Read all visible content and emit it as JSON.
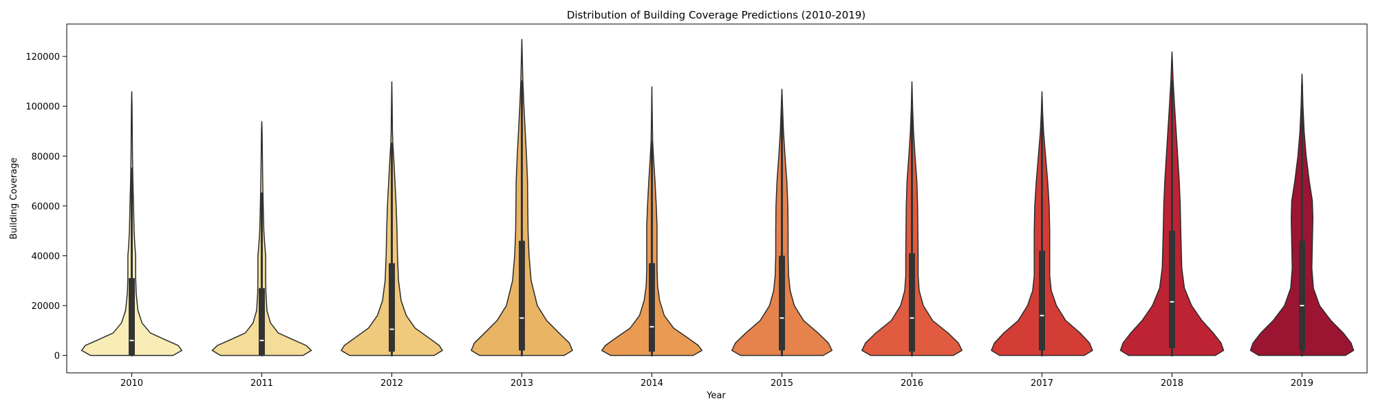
{
  "chart_data": {
    "type": "violin",
    "title": "Distribution of Building Coverage Predictions (2010-2019)",
    "xlabel": "Year",
    "ylabel": "Building Coverage",
    "ylim": [
      -7000,
      133000
    ],
    "yticks": [
      0,
      20000,
      40000,
      60000,
      80000,
      100000,
      120000
    ],
    "ytick_labels": [
      "0",
      "20000",
      "40000",
      "60000",
      "80000",
      "100000",
      "120000"
    ],
    "categories": [
      "2010",
      "2011",
      "2012",
      "2013",
      "2014",
      "2015",
      "2016",
      "2017",
      "2018",
      "2019"
    ],
    "grid": false,
    "legend": "none",
    "violins": [
      {
        "year": "2010",
        "color": "#F8EDB6",
        "min": 0,
        "q1": 0,
        "median": 6000,
        "q3": 31000,
        "whisker_high": 75000,
        "max": 106000,
        "profile": [
          [
            0,
            0.8
          ],
          [
            2000,
            0.97
          ],
          [
            4000,
            0.9
          ],
          [
            6000,
            0.68
          ],
          [
            9000,
            0.36
          ],
          [
            13000,
            0.2
          ],
          [
            18000,
            0.12
          ],
          [
            25000,
            0.085
          ],
          [
            32000,
            0.075
          ],
          [
            40000,
            0.075
          ],
          [
            44000,
            0.06
          ],
          [
            50000,
            0.045
          ],
          [
            60000,
            0.035
          ],
          [
            70000,
            0.022
          ],
          [
            80000,
            0.014
          ],
          [
            90000,
            0.01
          ],
          [
            100000,
            0.006
          ],
          [
            106000,
            0
          ]
        ]
      },
      {
        "year": "2011",
        "color": "#F4DD98",
        "min": 0,
        "q1": 0,
        "median": 6000,
        "q3": 27000,
        "whisker_high": 65000,
        "max": 94000,
        "profile": [
          [
            0,
            0.8
          ],
          [
            2000,
            0.96
          ],
          [
            4000,
            0.86
          ],
          [
            6000,
            0.64
          ],
          [
            9000,
            0.32
          ],
          [
            13000,
            0.17
          ],
          [
            18000,
            0.1
          ],
          [
            25000,
            0.08
          ],
          [
            32000,
            0.075
          ],
          [
            40000,
            0.075
          ],
          [
            45000,
            0.055
          ],
          [
            50000,
            0.04
          ],
          [
            60000,
            0.028
          ],
          [
            70000,
            0.018
          ],
          [
            80000,
            0.012
          ],
          [
            90000,
            0.006
          ],
          [
            94000,
            0
          ]
        ]
      },
      {
        "year": "2012",
        "color": "#EFC97C",
        "min": 0,
        "q1": 1500,
        "median": 10500,
        "q3": 37000,
        "whisker_high": 85000,
        "max": 110000,
        "profile": [
          [
            0,
            0.82
          ],
          [
            2000,
            0.98
          ],
          [
            4000,
            0.92
          ],
          [
            7000,
            0.72
          ],
          [
            11000,
            0.45
          ],
          [
            16000,
            0.28
          ],
          [
            22000,
            0.18
          ],
          [
            30000,
            0.13
          ],
          [
            40000,
            0.11
          ],
          [
            50000,
            0.1
          ],
          [
            60000,
            0.085
          ],
          [
            70000,
            0.06
          ],
          [
            80000,
            0.035
          ],
          [
            85000,
            0.02
          ],
          [
            90000,
            0.012
          ],
          [
            100000,
            0.007
          ],
          [
            110000,
            0
          ]
        ]
      },
      {
        "year": "2013",
        "color": "#EAB465",
        "min": 0,
        "q1": 2000,
        "median": 15000,
        "q3": 46000,
        "whisker_high": 110000,
        "max": 127000,
        "profile": [
          [
            0,
            0.82
          ],
          [
            2000,
            0.98
          ],
          [
            5000,
            0.92
          ],
          [
            9000,
            0.72
          ],
          [
            14000,
            0.48
          ],
          [
            20000,
            0.3
          ],
          [
            30000,
            0.18
          ],
          [
            40000,
            0.14
          ],
          [
            50000,
            0.12
          ],
          [
            60000,
            0.115
          ],
          [
            70000,
            0.11
          ],
          [
            80000,
            0.09
          ],
          [
            90000,
            0.065
          ],
          [
            100000,
            0.04
          ],
          [
            110000,
            0.02
          ],
          [
            120000,
            0.008
          ],
          [
            127000,
            0
          ]
        ]
      },
      {
        "year": "2014",
        "color": "#E99B53",
        "min": 0,
        "q1": 1500,
        "median": 11500,
        "q3": 37000,
        "whisker_high": 86000,
        "max": 108000,
        "profile": [
          [
            0,
            0.8
          ],
          [
            2000,
            0.97
          ],
          [
            4000,
            0.9
          ],
          [
            7000,
            0.7
          ],
          [
            11000,
            0.42
          ],
          [
            16000,
            0.24
          ],
          [
            22000,
            0.15
          ],
          [
            28000,
            0.11
          ],
          [
            35000,
            0.1
          ],
          [
            45000,
            0.1
          ],
          [
            52000,
            0.1
          ],
          [
            60000,
            0.085
          ],
          [
            70000,
            0.06
          ],
          [
            80000,
            0.03
          ],
          [
            86000,
            0.015
          ],
          [
            95000,
            0.008
          ],
          [
            108000,
            0
          ]
        ]
      },
      {
        "year": "2015",
        "color": "#E6834C",
        "min": 0,
        "q1": 2000,
        "median": 15000,
        "q3": 40000,
        "whisker_high": 100000,
        "max": 107000,
        "profile": [
          [
            0,
            0.8
          ],
          [
            2000,
            0.97
          ],
          [
            5000,
            0.9
          ],
          [
            9000,
            0.7
          ],
          [
            14000,
            0.42
          ],
          [
            20000,
            0.24
          ],
          [
            26000,
            0.16
          ],
          [
            32000,
            0.13
          ],
          [
            40000,
            0.12
          ],
          [
            50000,
            0.12
          ],
          [
            60000,
            0.115
          ],
          [
            70000,
            0.095
          ],
          [
            80000,
            0.06
          ],
          [
            90000,
            0.03
          ],
          [
            100000,
            0.012
          ],
          [
            107000,
            0
          ]
        ]
      },
      {
        "year": "2016",
        "color": "#E05B3F",
        "min": 0,
        "q1": 1500,
        "median": 15000,
        "q3": 41000,
        "whisker_high": 100000,
        "max": 110000,
        "profile": [
          [
            0,
            0.8
          ],
          [
            2000,
            0.97
          ],
          [
            5000,
            0.9
          ],
          [
            9000,
            0.7
          ],
          [
            14000,
            0.4
          ],
          [
            20000,
            0.22
          ],
          [
            26000,
            0.14
          ],
          [
            32000,
            0.12
          ],
          [
            40000,
            0.12
          ],
          [
            50000,
            0.115
          ],
          [
            60000,
            0.11
          ],
          [
            70000,
            0.095
          ],
          [
            80000,
            0.06
          ],
          [
            90000,
            0.03
          ],
          [
            100000,
            0.012
          ],
          [
            110000,
            0
          ]
        ]
      },
      {
        "year": "2017",
        "color": "#D43D35",
        "min": 0,
        "q1": 2000,
        "median": 16000,
        "q3": 42000,
        "whisker_high": 98000,
        "max": 106000,
        "profile": [
          [
            0,
            0.82
          ],
          [
            2000,
            0.98
          ],
          [
            5000,
            0.92
          ],
          [
            9000,
            0.74
          ],
          [
            14000,
            0.46
          ],
          [
            20000,
            0.28
          ],
          [
            26000,
            0.18
          ],
          [
            32000,
            0.15
          ],
          [
            40000,
            0.15
          ],
          [
            50000,
            0.15
          ],
          [
            60000,
            0.14
          ],
          [
            70000,
            0.11
          ],
          [
            80000,
            0.07
          ],
          [
            90000,
            0.03
          ],
          [
            98000,
            0.012
          ],
          [
            106000,
            0
          ]
        ]
      },
      {
        "year": "2018",
        "color": "#BE2334",
        "min": 0,
        "q1": 3000,
        "median": 21500,
        "q3": 50000,
        "whisker_high": 110000,
        "max": 122000,
        "profile": [
          [
            0,
            0.84
          ],
          [
            2000,
            1.0
          ],
          [
            5000,
            0.95
          ],
          [
            9000,
            0.8
          ],
          [
            14000,
            0.58
          ],
          [
            20000,
            0.38
          ],
          [
            27000,
            0.24
          ],
          [
            35000,
            0.19
          ],
          [
            42000,
            0.18
          ],
          [
            50000,
            0.17
          ],
          [
            60000,
            0.16
          ],
          [
            70000,
            0.14
          ],
          [
            80000,
            0.11
          ],
          [
            90000,
            0.08
          ],
          [
            100000,
            0.05
          ],
          [
            110000,
            0.022
          ],
          [
            122000,
            0
          ]
        ]
      },
      {
        "year": "2019",
        "color": "#9B1532",
        "min": 0,
        "q1": 2000,
        "median": 20000,
        "q3": 46000,
        "whisker_high": 108000,
        "max": 113000,
        "profile": [
          [
            0,
            0.84
          ],
          [
            2000,
            1.0
          ],
          [
            5000,
            0.95
          ],
          [
            9000,
            0.8
          ],
          [
            14000,
            0.56
          ],
          [
            20000,
            0.34
          ],
          [
            27000,
            0.22
          ],
          [
            35000,
            0.19
          ],
          [
            45000,
            0.2
          ],
          [
            55000,
            0.21
          ],
          [
            62000,
            0.2
          ],
          [
            70000,
            0.14
          ],
          [
            80000,
            0.08
          ],
          [
            90000,
            0.04
          ],
          [
            100000,
            0.018
          ],
          [
            108000,
            0.008
          ],
          [
            113000,
            0
          ]
        ]
      }
    ]
  }
}
